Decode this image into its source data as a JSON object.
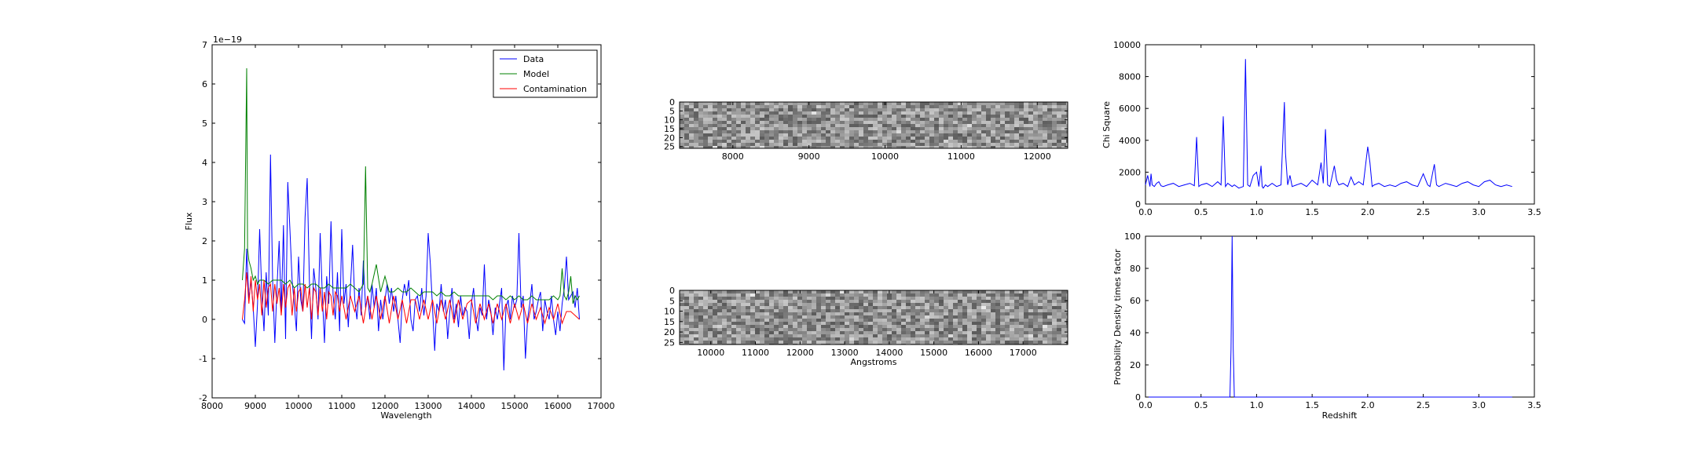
{
  "chart_data": [
    {
      "type": "line",
      "xlabel": "Wavelength",
      "ylabel": "Flux",
      "offset_label": "1e−19",
      "xlim": [
        8000,
        17000
      ],
      "ylim": [
        -2,
        7
      ],
      "xticks": [
        8000,
        9000,
        10000,
        11000,
        12000,
        13000,
        14000,
        15000,
        16000,
        17000
      ],
      "yticks": [
        -2,
        -1,
        0,
        1,
        2,
        3,
        4,
        5,
        6,
        7
      ],
      "legend": {
        "placement": "top-right"
      },
      "series": [
        {
          "name": "Data",
          "color": "#0000ff",
          "x": [
            8700,
            8750,
            8800,
            8850,
            8900,
            8950,
            9000,
            9050,
            9100,
            9150,
            9200,
            9250,
            9300,
            9350,
            9400,
            9450,
            9500,
            9550,
            9600,
            9650,
            9700,
            9750,
            9800,
            9850,
            9900,
            9950,
            10000,
            10050,
            10100,
            10150,
            10200,
            10250,
            10300,
            10350,
            10400,
            10450,
            10500,
            10550,
            10600,
            10650,
            10700,
            10750,
            10800,
            10850,
            10900,
            10950,
            11000,
            11050,
            11100,
            11150,
            11200,
            11250,
            11300,
            11350,
            11400,
            11450,
            11500,
            11550,
            11600,
            11650,
            11700,
            11750,
            11800,
            11850,
            11900,
            11950,
            12000,
            12050,
            12100,
            12150,
            12200,
            12250,
            12300,
            12350,
            12400,
            12450,
            12500,
            12550,
            12600,
            12650,
            12700,
            12750,
            12800,
            12850,
            12900,
            12950,
            13000,
            13050,
            13100,
            13150,
            13200,
            13250,
            13300,
            13350,
            13400,
            13450,
            13500,
            13550,
            13600,
            13650,
            13700,
            13750,
            13800,
            13850,
            13900,
            13950,
            14000,
            14050,
            14100,
            14150,
            14200,
            14250,
            14300,
            14350,
            14400,
            14450,
            14500,
            14550,
            14600,
            14650,
            14700,
            14750,
            14800,
            14850,
            14900,
            14950,
            15000,
            15050,
            15100,
            15150,
            15200,
            15250,
            15300,
            15350,
            15400,
            15450,
            15500,
            15550,
            15600,
            15650,
            15700,
            15750,
            15800,
            15850,
            15900,
            15950,
            16000,
            16050,
            16100,
            16150,
            16200,
            16250,
            16300,
            16350,
            16400,
            16450,
            16500
          ],
          "y": [
            0.0,
            -0.1,
            1.8,
            0.5,
            1.0,
            0.3,
            -0.7,
            0.4,
            2.3,
            0.6,
            -0.3,
            1.2,
            0.1,
            4.2,
            1.0,
            -0.6,
            0.8,
            2.0,
            0.2,
            2.4,
            -0.5,
            3.5,
            2.3,
            1.0,
            0.4,
            -0.3,
            1.6,
            0.5,
            0.2,
            2.6,
            3.6,
            1.0,
            -0.5,
            1.3,
            0.8,
            0.0,
            2.2,
            0.6,
            -0.6,
            1.1,
            0.4,
            2.5,
            0.6,
            0.0,
            1.2,
            -0.3,
            2.3,
            0.4,
            0.9,
            -0.2,
            0.8,
            1.9,
            0.5,
            0.0,
            0.8,
            0.1,
            1.5,
            0.3,
            0.6,
            0.0,
            0.9,
            0.3,
            0.8,
            -0.3,
            0.5,
            0.0,
            0.5,
            0.9,
            0.4,
            0.8,
            0.2,
            0.6,
            0.0,
            -0.6,
            0.5,
            0.9,
            0.6,
            1.0,
            0.0,
            -0.3,
            0.5,
            0.6,
            0.2,
            0.8,
            0.1,
            0.6,
            2.2,
            1.4,
            0.3,
            -0.8,
            0.4,
            0.2,
            0.9,
            0.2,
            0.5,
            -0.5,
            0.2,
            0.8,
            0.0,
            0.4,
            -0.2,
            0.6,
            0.1,
            0.3,
            0.2,
            -0.5,
            0.4,
            0.8,
            0.1,
            -0.3,
            0.3,
            0.1,
            1.4,
            0.0,
            0.5,
            0.2,
            -0.4,
            0.3,
            0.0,
            0.4,
            0.8,
            -1.3,
            0.3,
            0.5,
            0.0,
            0.6,
            0.3,
            0.5,
            2.2,
            0.3,
            0.6,
            -1.0,
            0.0,
            0.4,
            0.9,
            0.0,
            0.2,
            0.5,
            0.7,
            -0.3,
            0.5,
            0.2,
            0.0,
            0.6,
            0.0,
            -0.4,
            0.2,
            -0.3,
            0.4,
            0.8,
            1.6,
            0.5,
            0.6,
            0.7,
            0.3,
            0.8,
            0.0
          ],
          "note_x_step": 50
        },
        {
          "name": "Model",
          "color": "#008000",
          "x": [
            8700,
            8750,
            8800,
            8820,
            8850,
            8900,
            8950,
            9000,
            9050,
            9100,
            9200,
            9300,
            9400,
            9500,
            9600,
            9700,
            9800,
            9900,
            10000,
            10100,
            10200,
            10300,
            10400,
            10500,
            10600,
            10700,
            10800,
            10900,
            11000,
            11100,
            11200,
            11300,
            11400,
            11500,
            11550,
            11600,
            11650,
            11700,
            11800,
            11900,
            12000,
            12100,
            12200,
            12300,
            12400,
            12500,
            12600,
            12700,
            12800,
            12900,
            13000,
            13100,
            13200,
            13300,
            13400,
            13500,
            13600,
            13700,
            13800,
            13900,
            14000,
            14100,
            14200,
            14300,
            14400,
            14500,
            14600,
            14700,
            14800,
            14900,
            15000,
            15100,
            15200,
            15300,
            15400,
            15500,
            15600,
            15700,
            15800,
            15900,
            16000,
            16050,
            16100,
            16150,
            16200,
            16250,
            16300,
            16350,
            16400,
            16450,
            16500
          ],
          "y": [
            1.0,
            1.8,
            6.4,
            1.8,
            1.5,
            1.3,
            1.0,
            1.1,
            0.9,
            1.0,
            1.0,
            0.9,
            1.0,
            1.0,
            1.0,
            0.9,
            1.0,
            0.8,
            0.9,
            0.9,
            0.8,
            0.9,
            0.9,
            0.8,
            0.8,
            0.9,
            0.8,
            0.8,
            0.8,
            0.8,
            0.9,
            0.8,
            0.7,
            0.9,
            3.9,
            0.8,
            0.7,
            0.9,
            1.4,
            0.7,
            1.1,
            0.7,
            0.7,
            0.8,
            0.7,
            0.7,
            0.8,
            0.7,
            0.6,
            0.7,
            0.7,
            0.7,
            0.6,
            0.7,
            0.6,
            0.6,
            0.7,
            0.6,
            0.6,
            0.6,
            0.6,
            0.6,
            0.6,
            0.6,
            0.6,
            0.5,
            0.6,
            0.6,
            0.5,
            0.6,
            0.5,
            0.6,
            0.5,
            0.5,
            0.6,
            0.5,
            0.5,
            0.5,
            0.5,
            0.6,
            0.5,
            0.6,
            1.3,
            0.6,
            0.5,
            0.7,
            1.1,
            0.4,
            0.6,
            0.5,
            0.6
          ]
        },
        {
          "name": "Contamination",
          "color": "#ff0000",
          "x": [
            8700,
            8750,
            8800,
            8850,
            8900,
            8950,
            9000,
            9050,
            9100,
            9150,
            9200,
            9250,
            9300,
            9350,
            9400,
            9450,
            9500,
            9550,
            9600,
            9650,
            9700,
            9750,
            9800,
            9850,
            9900,
            9950,
            10000,
            10050,
            10100,
            10150,
            10200,
            10250,
            10300,
            10350,
            10400,
            10450,
            10500,
            10550,
            10600,
            10650,
            10700,
            10750,
            10800,
            10850,
            10900,
            10950,
            11000,
            11100,
            11200,
            11300,
            11400,
            11500,
            11600,
            11700,
            11800,
            11900,
            12000,
            12100,
            12200,
            12300,
            12400,
            12500,
            12600,
            12700,
            12800,
            12900,
            13000,
            13100,
            13200,
            13300,
            13400,
            13500,
            13600,
            13700,
            13800,
            13900,
            14000,
            14100,
            14200,
            14300,
            14400,
            14500,
            14600,
            14700,
            14800,
            14900,
            15000,
            15100,
            15200,
            15300,
            15400,
            15500,
            15600,
            15700,
            15800,
            15900,
            16000,
            16100,
            16200,
            16300,
            16400,
            16500
          ],
          "y": [
            0.0,
            0.5,
            1.2,
            0.4,
            1.1,
            0.2,
            1.0,
            0.5,
            0.9,
            0.1,
            1.0,
            0.3,
            0.8,
            0.9,
            0.2,
            0.9,
            0.4,
            0.8,
            0.1,
            0.9,
            0.3,
            0.8,
            0.9,
            0.1,
            0.8,
            0.2,
            0.7,
            0.8,
            0.2,
            0.9,
            0.3,
            0.8,
            0.0,
            0.8,
            0.7,
            0.1,
            0.8,
            0.2,
            0.7,
            0.0,
            0.7,
            0.6,
            0.1,
            0.7,
            0.6,
            0.2,
            0.6,
            0.0,
            0.6,
            0.2,
            0.6,
            -0.1,
            0.6,
            0.0,
            0.6,
            0.0,
            0.6,
            -0.1,
            0.6,
            0.0,
            0.5,
            -0.1,
            0.5,
            0.5,
            0.0,
            0.5,
            0.0,
            0.5,
            -0.1,
            0.5,
            0.0,
            0.5,
            -0.1,
            0.5,
            0.0,
            0.4,
            0.5,
            -0.1,
            0.4,
            0.0,
            0.4,
            -0.1,
            0.4,
            0.0,
            0.4,
            -0.1,
            0.4,
            0.0,
            0.4,
            -0.1,
            0.4,
            0.0,
            0.3,
            -0.1,
            0.3,
            0.0,
            0.4,
            -0.1,
            0.2,
            0.2,
            0.1,
            0.0
          ]
        }
      ]
    },
    {
      "type": "heatmap",
      "xlim": [
        7300,
        12400
      ],
      "ylim": [
        26,
        0
      ],
      "xticks": [
        8000,
        9000,
        10000,
        11000,
        12000
      ],
      "yticks": [
        0,
        5,
        10,
        15,
        20,
        25
      ],
      "colormap": "grayscale"
    },
    {
      "type": "heatmap",
      "xlabel": "Angstroms",
      "xlim": [
        9300,
        18000
      ],
      "ylim": [
        26,
        0
      ],
      "xticks": [
        10000,
        11000,
        12000,
        13000,
        14000,
        15000,
        16000,
        17000
      ],
      "yticks": [
        0,
        5,
        10,
        15,
        20,
        25
      ],
      "colormap": "grayscale"
    },
    {
      "type": "line",
      "ylabel": "Chi Square",
      "xlim": [
        0.0,
        3.5
      ],
      "ylim": [
        0,
        10000
      ],
      "xticks": [
        "0.0",
        "0.5",
        "1.0",
        "1.5",
        "2.0",
        "2.5",
        "3.0",
        "3.5"
      ],
      "yticks": [
        0,
        2000,
        4000,
        6000,
        8000,
        10000
      ],
      "series": [
        {
          "color": "#0000ff",
          "x": [
            0.0,
            0.02,
            0.04,
            0.05,
            0.06,
            0.08,
            0.1,
            0.12,
            0.14,
            0.16,
            0.2,
            0.25,
            0.3,
            0.35,
            0.4,
            0.44,
            0.46,
            0.48,
            0.5,
            0.55,
            0.6,
            0.65,
            0.68,
            0.7,
            0.72,
            0.74,
            0.78,
            0.8,
            0.84,
            0.88,
            0.9,
            0.92,
            0.94,
            0.97,
            1.0,
            1.02,
            1.04,
            1.05,
            1.06,
            1.08,
            1.1,
            1.14,
            1.18,
            1.22,
            1.25,
            1.26,
            1.28,
            1.3,
            1.32,
            1.36,
            1.4,
            1.45,
            1.5,
            1.55,
            1.58,
            1.6,
            1.62,
            1.64,
            1.66,
            1.7,
            1.72,
            1.74,
            1.78,
            1.82,
            1.85,
            1.88,
            1.92,
            1.96,
            2.0,
            2.02,
            2.04,
            2.06,
            2.1,
            2.15,
            2.2,
            2.25,
            2.3,
            2.35,
            2.4,
            2.45,
            2.5,
            2.54,
            2.56,
            2.6,
            2.62,
            2.64,
            2.7,
            2.75,
            2.8,
            2.85,
            2.9,
            2.95,
            3.0,
            3.05,
            3.1,
            3.15,
            3.2,
            3.25,
            3.3
          ],
          "y": [
            1200,
            1800,
            1100,
            1900,
            1200,
            1100,
            1300,
            1400,
            1150,
            1100,
            1200,
            1300,
            1100,
            1200,
            1300,
            1150,
            4200,
            1100,
            1200,
            1300,
            1100,
            1400,
            1200,
            5500,
            1100,
            1300,
            1100,
            1200,
            1000,
            1100,
            9100,
            1200,
            1100,
            1800,
            2000,
            1100,
            2400,
            1100,
            1000,
            1200,
            1100,
            1300,
            1100,
            1200,
            6400,
            3200,
            1200,
            1800,
            1100,
            1200,
            1300,
            1100,
            1500,
            1200,
            2600,
            1300,
            4700,
            1200,
            1100,
            2400,
            1500,
            1200,
            1300,
            1100,
            1700,
            1200,
            1400,
            1200,
            3600,
            2600,
            1100,
            1200,
            1300,
            1100,
            1200,
            1100,
            1300,
            1400,
            1200,
            1100,
            1900,
            1200,
            1100,
            2500,
            1200,
            1100,
            1300,
            1200,
            1100,
            1300,
            1400,
            1200,
            1100,
            1400,
            1500,
            1200,
            1100,
            1200,
            1100
          ]
        }
      ]
    },
    {
      "type": "line",
      "xlabel": "Redshift",
      "ylabel": "Probability Density times factor",
      "xlim": [
        0.0,
        3.5
      ],
      "ylim": [
        0,
        100
      ],
      "xticks": [
        "0.0",
        "0.5",
        "1.0",
        "1.5",
        "2.0",
        "2.5",
        "3.0",
        "3.5"
      ],
      "yticks": [
        0,
        20,
        40,
        60,
        80,
        100
      ],
      "series": [
        {
          "color": "#0000ff",
          "x": [
            0.0,
            0.76,
            0.77,
            0.78,
            0.79,
            0.8,
            3.3
          ],
          "y": [
            0,
            0,
            30,
            100,
            30,
            0,
            0
          ]
        }
      ]
    }
  ]
}
